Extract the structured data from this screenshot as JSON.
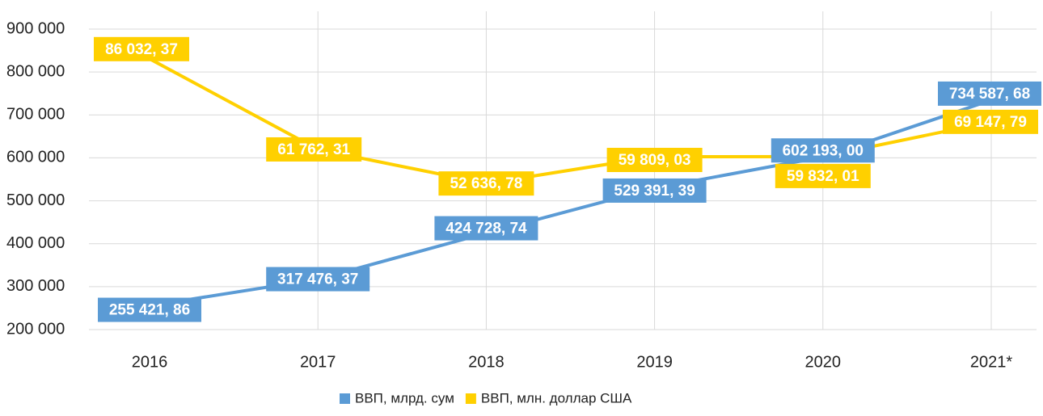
{
  "chart_data": {
    "type": "line",
    "categories": [
      "2016",
      "2017",
      "2018",
      "2019",
      "2020",
      "2021*"
    ],
    "series": [
      {
        "name": "ВВП, млрд. сум",
        "color": "#5b9bd5",
        "values": [
          255421.86,
          317476.37,
          424728.74,
          529391.39,
          602193.0,
          734587.68
        ],
        "value_labels": [
          "255 421, 86",
          "317 476, 37",
          "424 728, 74",
          "529 391, 39",
          "602 193, 00",
          "734 587, 68"
        ]
      },
      {
        "name": "ВВП, млн. доллар США",
        "color": "#ffd000",
        "axis": "y2",
        "values": [
          86032.37,
          61762.31,
          52636.78,
          59809.03,
          59832.01,
          69147.79
        ],
        "value_labels": [
          "86 032, 37",
          "61 762, 31",
          "52 636, 78",
          "59 809, 03",
          "59 832, 01",
          "69 147, 79"
        ]
      }
    ],
    "ylim": [
      200000,
      900000
    ],
    "yticks": [
      {
        "value": 200000,
        "label": "200 000"
      },
      {
        "value": 300000,
        "label": "300 000"
      },
      {
        "value": 400000,
        "label": "400 000"
      },
      {
        "value": 500000,
        "label": "500 000"
      },
      {
        "value": 600000,
        "label": "600 000"
      },
      {
        "value": 700000,
        "label": "700 000"
      },
      {
        "value": 800000,
        "label": "800 000"
      },
      {
        "value": 900000,
        "label": "900 000"
      }
    ],
    "y2lim": [
      13500,
      94000
    ],
    "grid": true,
    "legend": "bottom"
  }
}
